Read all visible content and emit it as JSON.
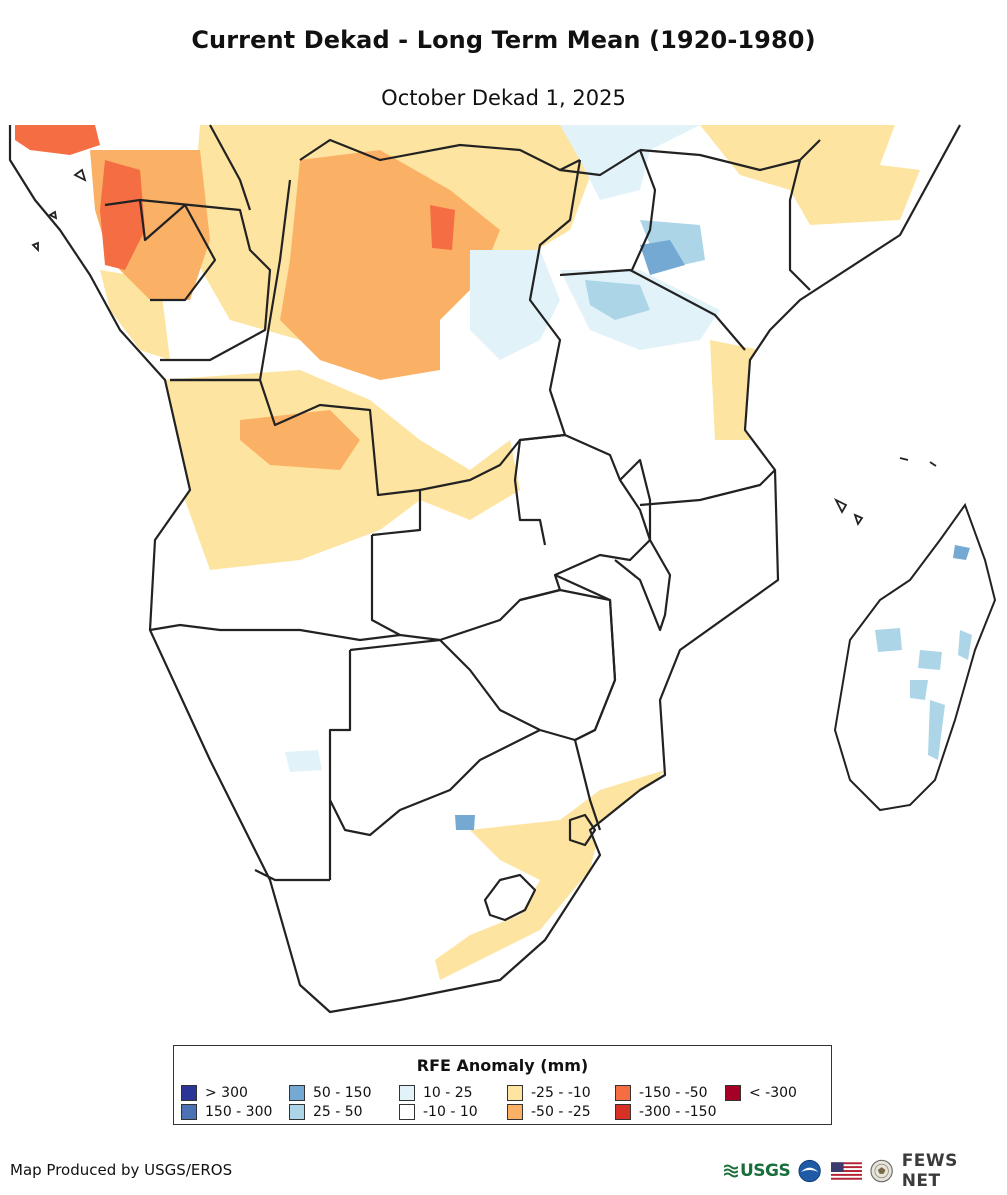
{
  "header": {
    "title": "Current Dekad - Long Term Mean (1920-1980)",
    "subtitle": "October Dekad 1, 2025"
  },
  "legend": {
    "title": "RFE Anomaly (mm)",
    "items": [
      {
        "label": "> 300",
        "color": "#2b3596"
      },
      {
        "label": "150 - 300",
        "color": "#4a72b4"
      },
      {
        "label": "50 - 150",
        "color": "#74a9d4"
      },
      {
        "label": "25 - 50",
        "color": "#acd6e8"
      },
      {
        "label": "10 - 25",
        "color": "#e1f2f9"
      },
      {
        "label": "-10 - 10",
        "color": "#ffffff"
      },
      {
        "label": "-25 - -10",
        "color": "#fde4a0"
      },
      {
        "label": "-50 - -25",
        "color": "#fbb165"
      },
      {
        "label": "-150 - -50",
        "color": "#f46d43"
      },
      {
        "label": "-300 - -150",
        "color": "#d73027"
      },
      {
        "label": "< -300",
        "color": "#a50026"
      }
    ]
  },
  "footer": {
    "credit": "Map Produced by USGS/EROS",
    "logo_usgs": "USGS",
    "logo_fews": "FEWS NET"
  },
  "icons": [
    "usgs-logo-icon",
    "noaa-logo-icon",
    "us-flag-icon",
    "state-department-seal-icon"
  ]
}
